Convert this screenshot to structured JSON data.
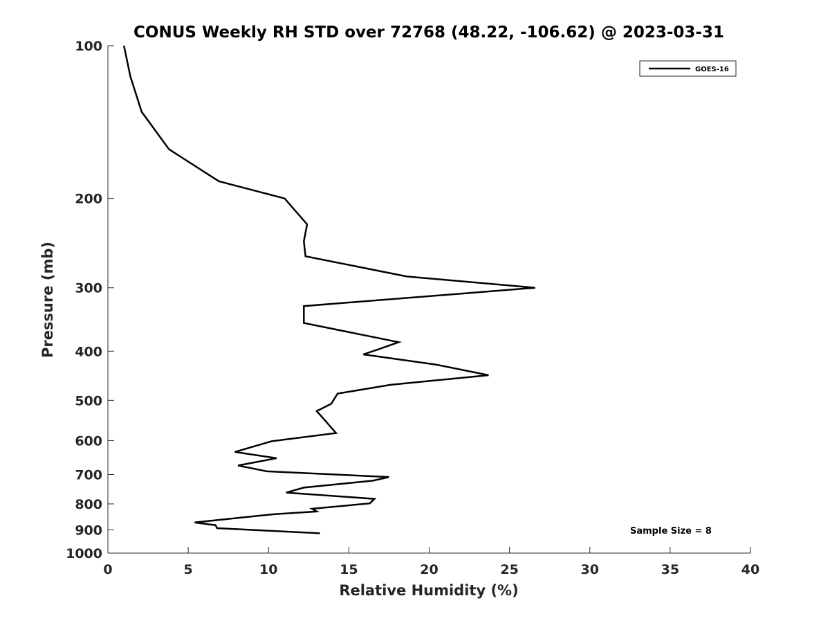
{
  "chart_data": {
    "type": "line",
    "title": "CONUS Weekly RH STD over 72768 (48.22, -106.62) @ 2023-03-31",
    "xlabel": "Relative Humidity (%)",
    "ylabel": "Pressure (mb)",
    "xlim": [
      0,
      40
    ],
    "ylim": [
      100,
      1000
    ],
    "y_scale": "log",
    "y_reversed": true,
    "x_ticks": [
      "0",
      "5",
      "10",
      "15",
      "20",
      "25",
      "30",
      "35",
      "40"
    ],
    "y_ticks": [
      "100",
      "200",
      "300",
      "400",
      "500",
      "600",
      "700",
      "800",
      "900",
      "1000"
    ],
    "grid": false,
    "legend_position": "top-right",
    "annotation": "Sample Size = 8",
    "series": [
      {
        "name": "GOES-16",
        "color": "#000000",
        "x": [
          1.0,
          1.4,
          2.1,
          3.8,
          6.9,
          11.0,
          12.4,
          12.2,
          12.3,
          18.6,
          26.6,
          12.2,
          12.2,
          18.1,
          16.8,
          15.9,
          20.4,
          23.7,
          17.6,
          14.3,
          13.9,
          13.0,
          13.3,
          14.2,
          10.2,
          7.9,
          10.5,
          8.1,
          9.9,
          17.5,
          16.5,
          12.2,
          11.1,
          16.6,
          16.3,
          12.7,
          13.0,
          10.4,
          5.4,
          6.7,
          6.8,
          13.2
        ],
        "y": [
          100,
          115,
          135,
          160,
          185,
          200,
          225,
          243,
          260,
          285,
          300,
          326,
          352,
          384,
          397,
          406,
          425,
          446,
          466,
          485,
          508,
          525,
          538,
          580,
          602,
          632,
          650,
          672,
          690,
          708,
          720,
          743,
          760,
          782,
          798,
          818,
          828,
          838,
          870,
          881,
          893,
          914
        ]
      }
    ]
  }
}
